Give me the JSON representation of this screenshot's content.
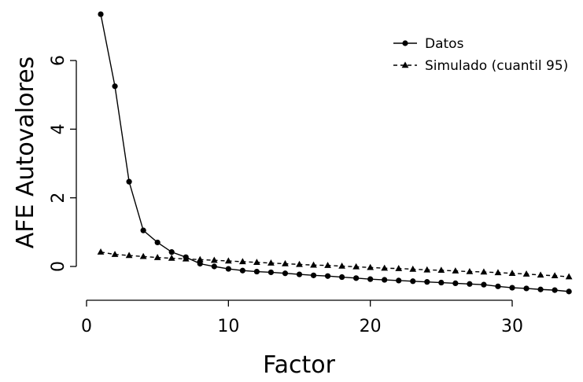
{
  "chart_data": {
    "type": "line",
    "title": "",
    "xlabel": "Factor",
    "ylabel": "AFE Autovalores",
    "xlim": [
      0,
      34
    ],
    "ylim": [
      -0.75,
      7.35
    ],
    "xticks": [
      0,
      10,
      20,
      30
    ],
    "yticks": [
      0,
      2,
      4,
      6
    ],
    "grid": false,
    "legend_position": "top-right",
    "x": [
      1,
      2,
      3,
      4,
      5,
      6,
      7,
      8,
      9,
      10,
      11,
      12,
      13,
      14,
      15,
      16,
      17,
      18,
      19,
      20,
      21,
      22,
      23,
      24,
      25,
      26,
      27,
      28,
      29,
      30,
      31,
      32,
      33,
      34
    ],
    "series": [
      {
        "name": "Datos",
        "marker": "circle",
        "line": "solid",
        "color": "#000000",
        "values": [
          7.35,
          5.25,
          2.47,
          1.05,
          0.7,
          0.42,
          0.27,
          0.08,
          0.0,
          -0.07,
          -0.12,
          -0.15,
          -0.17,
          -0.2,
          -0.23,
          -0.26,
          -0.28,
          -0.31,
          -0.34,
          -0.37,
          -0.39,
          -0.41,
          -0.43,
          -0.45,
          -0.47,
          -0.49,
          -0.51,
          -0.53,
          -0.58,
          -0.62,
          -0.64,
          -0.67,
          -0.69,
          -0.73
        ]
      },
      {
        "name": "Simulado (cuantil 95)",
        "marker": "triangle",
        "line": "dashed",
        "color": "#000000",
        "values": [
          0.42,
          0.35,
          0.32,
          0.29,
          0.26,
          0.24,
          0.22,
          0.2,
          0.18,
          0.16,
          0.14,
          0.12,
          0.1,
          0.08,
          0.06,
          0.04,
          0.03,
          0.01,
          -0.01,
          -0.03,
          -0.05,
          -0.06,
          -0.08,
          -0.1,
          -0.11,
          -0.13,
          -0.15,
          -0.16,
          -0.18,
          -0.2,
          -0.22,
          -0.25,
          -0.27,
          -0.3
        ]
      }
    ]
  }
}
